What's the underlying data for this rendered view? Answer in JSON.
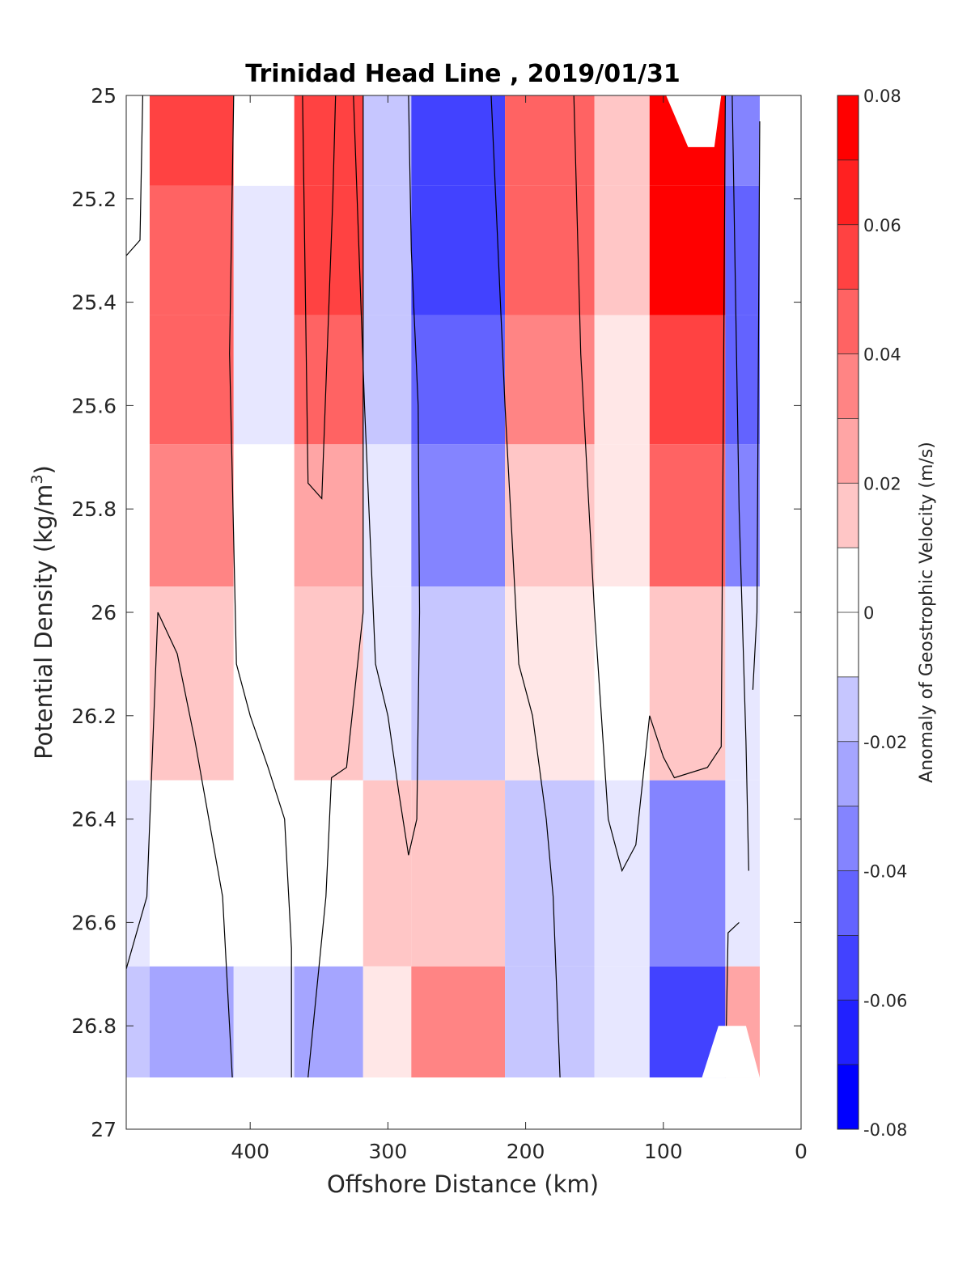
{
  "chart_data": {
    "type": "heatmap",
    "title": "Trinidad Head Line , 2019/01/31",
    "xlabel": "Offshore Distance (km)",
    "ylabel": "Potential Density (kg/m",
    "ylabel_sup": "3",
    "ylabel_close": ")",
    "xlim": [
      490,
      0
    ],
    "ylim": [
      27,
      25
    ],
    "x_reversed": true,
    "y_reversed": true,
    "x_ticks": [
      400,
      300,
      200,
      100,
      0
    ],
    "y_ticks": [
      25,
      25.2,
      25.4,
      25.6,
      25.8,
      26,
      26.2,
      26.4,
      26.6,
      26.8,
      27
    ],
    "colorbar": {
      "label": "Anomaly of Geostrophic Velocity (m/s)",
      "ticks": [
        0.08,
        0.06,
        0.04,
        0.02,
        0,
        -0.02,
        -0.04,
        -0.06,
        -0.08
      ],
      "range": [
        -0.08,
        0.08
      ],
      "levels": 16,
      "colors": [
        "#0000ff",
        "#2121ff",
        "#4242ff",
        "#6363ff",
        "#8484ff",
        "#a5a5ff",
        "#c6c6ff",
        "#e7e7ff",
        "#ffffff",
        "#ffe7e7",
        "#ffc6c6",
        "#ffa5a5",
        "#ff8484",
        "#ff6363",
        "#ff4242",
        "#ff2121",
        "#ff0000"
      ]
    },
    "data_extent": {
      "y_bottom": 26.9
    },
    "grid": false,
    "bands": [
      {
        "x": [
          490,
          473
        ],
        "v": [
          0,
          0,
          0,
          0,
          0,
          -0.015,
          -0.02
        ]
      },
      {
        "x": [
          473,
          412
        ],
        "v": [
          0.055,
          0.05,
          0.045,
          0.035,
          0.02,
          0,
          -0.03
        ]
      },
      {
        "x": [
          412,
          368
        ],
        "v": [
          0,
          -0.01,
          -0.01,
          0,
          0,
          0,
          -0.01
        ]
      },
      {
        "x": [
          368,
          318
        ],
        "v": [
          0.06,
          0.055,
          0.045,
          0.03,
          0.015,
          0,
          -0.035
        ]
      },
      {
        "x": [
          318,
          283
        ],
        "v": [
          -0.025,
          -0.02,
          -0.02,
          -0.015,
          -0.01,
          0.015,
          0.01
        ]
      },
      {
        "x": [
          283,
          215
        ],
        "v": [
          -0.065,
          -0.06,
          -0.05,
          -0.04,
          -0.02,
          0.015,
          0.035
        ]
      },
      {
        "x": [
          215,
          150
        ],
        "v": [
          0.05,
          0.045,
          0.035,
          0.02,
          0.01,
          -0.02,
          -0.02
        ]
      },
      {
        "x": [
          150,
          110
        ],
        "v": [
          0.02,
          0.015,
          0.01,
          0.005,
          0,
          -0.015,
          -0.015
        ]
      },
      {
        "x": [
          110,
          55
        ],
        "v": [
          0.075,
          0.075,
          0.06,
          0.045,
          0.02,
          -0.04,
          -0.06
        ]
      },
      {
        "x": [
          55,
          30
        ],
        "v": [
          -0.045,
          -0.05,
          -0.055,
          -0.04,
          -0.015,
          -0.015,
          0.03
        ]
      }
    ],
    "band_y": [
      25.05,
      25.3,
      25.55,
      25.8,
      26.1,
      26.55,
      26.82
    ],
    "zero_contours": [
      [
        [
          490,
          25.31
        ],
        [
          480,
          25.28
        ],
        [
          478,
          25.0
        ]
      ],
      [
        [
          490,
          26.69
        ],
        [
          475,
          26.55
        ],
        [
          467,
          26.0
        ],
        [
          453,
          26.08
        ],
        [
          440,
          26.25
        ],
        [
          430,
          26.4
        ],
        [
          420,
          26.55
        ],
        [
          413,
          26.9
        ]
      ],
      [
        [
          362,
          25.0
        ],
        [
          358,
          25.75
        ],
        [
          348,
          25.78
        ],
        [
          340,
          25.2
        ],
        [
          338,
          25.0
        ]
      ],
      [
        [
          370,
          26.9
        ],
        [
          370,
          26.65
        ],
        [
          375,
          26.4
        ],
        [
          387,
          26.3
        ],
        [
          400,
          26.2
        ],
        [
          410,
          26.1
        ],
        [
          415,
          25.5
        ],
        [
          412,
          25.0
        ]
      ],
      [
        [
          318,
          25.0
        ],
        [
          318,
          25.4
        ],
        [
          318,
          26.0
        ],
        [
          330,
          26.3
        ],
        [
          341,
          26.32
        ],
        [
          345,
          26.55
        ],
        [
          358,
          26.9
        ]
      ],
      [
        [
          285,
          25.0
        ],
        [
          283,
          25.3
        ],
        [
          278,
          25.6
        ],
        [
          277,
          26.0
        ],
        [
          279,
          26.4
        ],
        [
          285,
          26.47
        ],
        [
          292,
          26.35
        ],
        [
          300,
          26.2
        ],
        [
          309,
          26.1
        ],
        [
          317,
          25.6
        ],
        [
          325,
          25.0
        ]
      ],
      [
        [
          225,
          25.0
        ],
        [
          215,
          25.6
        ],
        [
          205,
          26.1
        ],
        [
          195,
          26.2
        ],
        [
          185,
          26.4
        ],
        [
          180,
          26.55
        ],
        [
          175,
          26.9
        ]
      ],
      [
        [
          165,
          25.0
        ],
        [
          160,
          25.5
        ],
        [
          150,
          26.0
        ],
        [
          145,
          26.2
        ],
        [
          140,
          26.4
        ],
        [
          130,
          26.5
        ],
        [
          120,
          26.45
        ],
        [
          110,
          26.2
        ],
        [
          100,
          26.28
        ],
        [
          92,
          26.32
        ],
        [
          68,
          26.3
        ],
        [
          58,
          26.26
        ],
        [
          55,
          25.0
        ]
      ],
      [
        [
          50,
          25.0
        ],
        [
          45,
          25.8
        ],
        [
          40,
          26.25
        ],
        [
          38,
          26.5
        ]
      ],
      [
        [
          30,
          25.05
        ],
        [
          32,
          26.0
        ],
        [
          35,
          26.15
        ]
      ],
      [
        [
          55,
          26.9
        ],
        [
          53,
          26.62
        ],
        [
          45,
          26.6
        ]
      ]
    ],
    "masked_regions": [
      {
        "description": "no data",
        "polygon": [
          [
            98,
            25.0
          ],
          [
            58,
            25.0
          ],
          [
            63,
            25.1
          ],
          [
            82,
            25.1
          ]
        ]
      },
      {
        "description": "no data",
        "polygon": [
          [
            490,
            26.9
          ],
          [
            0,
            26.9
          ],
          [
            0,
            27.0
          ],
          [
            490,
            27.0
          ]
        ]
      },
      {
        "description": "no data",
        "polygon": [
          [
            60,
            26.8
          ],
          [
            40,
            26.8
          ],
          [
            30,
            26.9
          ],
          [
            72,
            26.9
          ]
        ]
      }
    ]
  }
}
